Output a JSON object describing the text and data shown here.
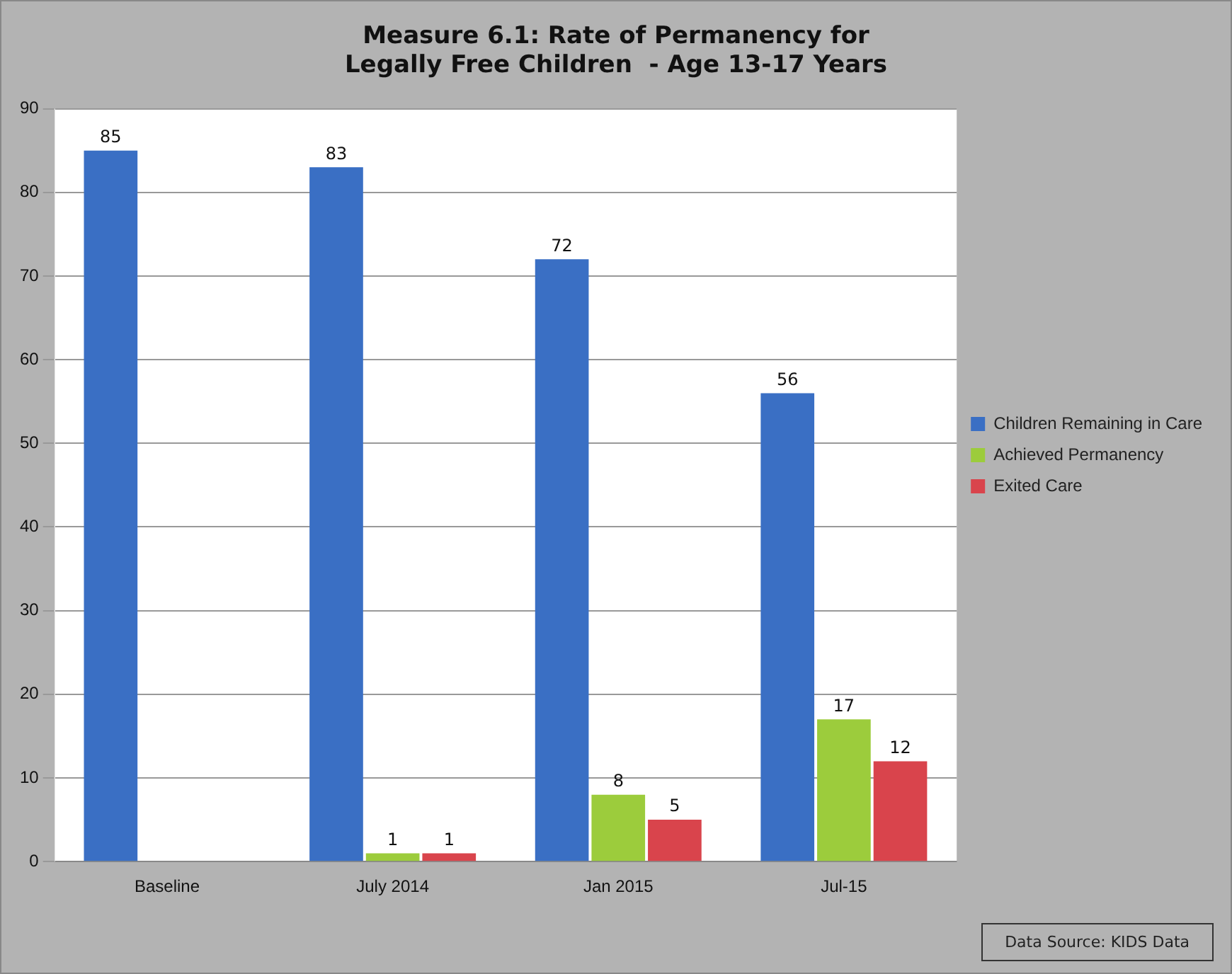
{
  "chart_data": {
    "type": "bar",
    "title": "Measure 6.1: Rate of Permanency for\nLegally Free Children  - Age 13-17 Years",
    "categories": [
      "Baseline",
      "July 2014",
      "Jan 2015",
      "Jul-15"
    ],
    "series": [
      {
        "name": "Children Remaining in Care",
        "color": "#3a6fc4",
        "values": [
          85,
          83,
          72,
          56
        ],
        "value_labels": [
          "85",
          "83",
          "72",
          "56"
        ]
      },
      {
        "name": "Achieved Permanency",
        "color": "#9ccc3c",
        "values": [
          0,
          1,
          8,
          17
        ],
        "value_labels": [
          null,
          "1",
          "8",
          "17"
        ]
      },
      {
        "name": "Exited Care",
        "color": "#d9444c",
        "values": [
          0,
          1,
          5,
          12
        ],
        "value_labels": [
          null,
          "1",
          "5",
          "12"
        ]
      }
    ],
    "ylim": [
      0,
      90
    ],
    "yticks": [
      0,
      10,
      20,
      30,
      40,
      50,
      60,
      70,
      80,
      90
    ],
    "grid": "y",
    "legend": "right",
    "annotations": [
      "Data Source: KIDS Data"
    ]
  }
}
